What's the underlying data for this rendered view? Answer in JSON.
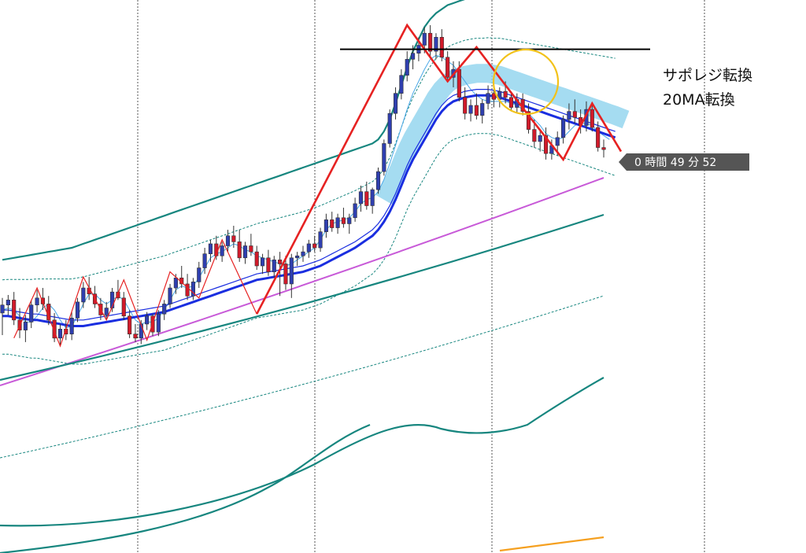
{
  "annotations": {
    "support_resistance_flip": "サポレジ転換",
    "ma20_flip": "20MA転換",
    "countdown": "0 時間 49 分 52"
  },
  "colors": {
    "background": "#ffffff",
    "grid": "#555555",
    "bull_candle": "#2f3fb0",
    "bear_candle": "#d11a2a",
    "zigzag": "#e62222",
    "ma_fast_thin": "#4aa8e8",
    "ma_20": "#1a2ee0",
    "bollinger": "#17867f",
    "ma_long": "#c85ad8",
    "ma_very_long": "#f5a020",
    "highlight_band": "#8fd3ee",
    "circle": "#f2c21a",
    "horizontal_line": "#000000",
    "timer_box": "#555555"
  },
  "chart_data": {
    "type": "candlestick",
    "title": "",
    "xlabel": "",
    "ylabel": "",
    "grid": true,
    "candles": [
      {
        "o": 347,
        "h": 362,
        "l": 325,
        "c": 355
      },
      {
        "o": 355,
        "h": 365,
        "l": 345,
        "c": 360
      },
      {
        "o": 360,
        "h": 368,
        "l": 335,
        "c": 340
      },
      {
        "o": 340,
        "h": 352,
        "l": 322,
        "c": 330
      },
      {
        "o": 330,
        "h": 345,
        "l": 318,
        "c": 338
      },
      {
        "o": 338,
        "h": 360,
        "l": 332,
        "c": 355
      },
      {
        "o": 355,
        "h": 370,
        "l": 348,
        "c": 362
      },
      {
        "o": 362,
        "h": 372,
        "l": 350,
        "c": 356
      },
      {
        "o": 356,
        "h": 364,
        "l": 335,
        "c": 340
      },
      {
        "o": 340,
        "h": 347,
        "l": 318,
        "c": 322
      },
      {
        "o": 322,
        "h": 336,
        "l": 314,
        "c": 331
      },
      {
        "o": 331,
        "h": 340,
        "l": 320,
        "c": 326
      },
      {
        "o": 326,
        "h": 348,
        "l": 320,
        "c": 342
      },
      {
        "o": 342,
        "h": 362,
        "l": 338,
        "c": 358
      },
      {
        "o": 358,
        "h": 378,
        "l": 352,
        "c": 372
      },
      {
        "o": 372,
        "h": 383,
        "l": 360,
        "c": 366
      },
      {
        "o": 366,
        "h": 374,
        "l": 352,
        "c": 356
      },
      {
        "o": 356,
        "h": 362,
        "l": 340,
        "c": 345
      },
      {
        "o": 345,
        "h": 358,
        "l": 340,
        "c": 352
      },
      {
        "o": 352,
        "h": 372,
        "l": 348,
        "c": 368
      },
      {
        "o": 368,
        "h": 380,
        "l": 360,
        "c": 362
      },
      {
        "o": 362,
        "h": 368,
        "l": 340,
        "c": 344
      },
      {
        "o": 344,
        "h": 350,
        "l": 322,
        "c": 326
      },
      {
        "o": 326,
        "h": 336,
        "l": 318,
        "c": 322
      },
      {
        "o": 322,
        "h": 340,
        "l": 316,
        "c": 336
      },
      {
        "o": 336,
        "h": 348,
        "l": 330,
        "c": 344
      },
      {
        "o": 344,
        "h": 346,
        "l": 324,
        "c": 328
      },
      {
        "o": 328,
        "h": 350,
        "l": 324,
        "c": 346
      },
      {
        "o": 346,
        "h": 360,
        "l": 340,
        "c": 356
      },
      {
        "o": 356,
        "h": 376,
        "l": 352,
        "c": 372
      },
      {
        "o": 372,
        "h": 386,
        "l": 366,
        "c": 382
      },
      {
        "o": 382,
        "h": 394,
        "l": 372,
        "c": 376
      },
      {
        "o": 376,
        "h": 386,
        "l": 360,
        "c": 364
      },
      {
        "o": 364,
        "h": 382,
        "l": 360,
        "c": 378
      },
      {
        "o": 378,
        "h": 398,
        "l": 372,
        "c": 392
      },
      {
        "o": 392,
        "h": 412,
        "l": 386,
        "c": 406
      },
      {
        "o": 406,
        "h": 420,
        "l": 398,
        "c": 416
      },
      {
        "o": 416,
        "h": 424,
        "l": 400,
        "c": 404
      },
      {
        "o": 404,
        "h": 418,
        "l": 398,
        "c": 414
      },
      {
        "o": 414,
        "h": 430,
        "l": 408,
        "c": 424
      },
      {
        "o": 424,
        "h": 434,
        "l": 412,
        "c": 418
      },
      {
        "o": 418,
        "h": 430,
        "l": 398,
        "c": 402
      },
      {
        "o": 402,
        "h": 418,
        "l": 396,
        "c": 414
      },
      {
        "o": 414,
        "h": 426,
        "l": 404,
        "c": 408
      },
      {
        "o": 408,
        "h": 414,
        "l": 390,
        "c": 394
      },
      {
        "o": 394,
        "h": 406,
        "l": 386,
        "c": 402
      },
      {
        "o": 402,
        "h": 410,
        "l": 384,
        "c": 388
      },
      {
        "o": 388,
        "h": 404,
        "l": 382,
        "c": 400
      },
      {
        "o": 400,
        "h": 408,
        "l": 364,
        "c": 396
      },
      {
        "o": 396,
        "h": 404,
        "l": 370,
        "c": 376
      },
      {
        "o": 376,
        "h": 406,
        "l": 362,
        "c": 402
      },
      {
        "o": 402,
        "h": 408,
        "l": 394,
        "c": 404
      },
      {
        "o": 404,
        "h": 414,
        "l": 398,
        "c": 408
      },
      {
        "o": 408,
        "h": 420,
        "l": 402,
        "c": 416
      },
      {
        "o": 416,
        "h": 424,
        "l": 408,
        "c": 412
      },
      {
        "o": 412,
        "h": 432,
        "l": 408,
        "c": 428
      },
      {
        "o": 428,
        "h": 446,
        "l": 422,
        "c": 440
      },
      {
        "o": 440,
        "h": 448,
        "l": 428,
        "c": 432
      },
      {
        "o": 432,
        "h": 446,
        "l": 426,
        "c": 442
      },
      {
        "o": 442,
        "h": 452,
        "l": 432,
        "c": 436
      },
      {
        "o": 436,
        "h": 446,
        "l": 426,
        "c": 442
      },
      {
        "o": 442,
        "h": 462,
        "l": 438,
        "c": 456
      },
      {
        "o": 456,
        "h": 474,
        "l": 448,
        "c": 468
      },
      {
        "o": 468,
        "h": 478,
        "l": 450,
        "c": 454
      },
      {
        "o": 454,
        "h": 472,
        "l": 446,
        "c": 470
      },
      {
        "o": 470,
        "h": 492,
        "l": 466,
        "c": 488
      },
      {
        "o": 488,
        "h": 520,
        "l": 484,
        "c": 516
      },
      {
        "o": 516,
        "h": 550,
        "l": 512,
        "c": 546
      },
      {
        "o": 546,
        "h": 572,
        "l": 540,
        "c": 566
      },
      {
        "o": 566,
        "h": 590,
        "l": 560,
        "c": 584
      },
      {
        "o": 584,
        "h": 608,
        "l": 578,
        "c": 600
      },
      {
        "o": 600,
        "h": 614,
        "l": 590,
        "c": 606
      },
      {
        "o": 606,
        "h": 622,
        "l": 598,
        "c": 614
      },
      {
        "o": 614,
        "h": 632,
        "l": 606,
        "c": 626
      },
      {
        "o": 626,
        "h": 634,
        "l": 602,
        "c": 608
      },
      {
        "o": 608,
        "h": 626,
        "l": 600,
        "c": 622
      },
      {
        "o": 622,
        "h": 630,
        "l": 598,
        "c": 602
      },
      {
        "o": 602,
        "h": 608,
        "l": 578,
        "c": 582
      },
      {
        "o": 582,
        "h": 598,
        "l": 572,
        "c": 590
      },
      {
        "o": 590,
        "h": 598,
        "l": 558,
        "c": 562
      },
      {
        "o": 562,
        "h": 572,
        "l": 540,
        "c": 546
      },
      {
        "o": 546,
        "h": 560,
        "l": 538,
        "c": 554
      },
      {
        "o": 554,
        "h": 566,
        "l": 540,
        "c": 544
      },
      {
        "o": 544,
        "h": 560,
        "l": 536,
        "c": 556
      },
      {
        "o": 556,
        "h": 574,
        "l": 550,
        "c": 566
      },
      {
        "o": 566,
        "h": 576,
        "l": 552,
        "c": 560
      },
      {
        "o": 560,
        "h": 572,
        "l": 552,
        "c": 568
      },
      {
        "o": 568,
        "h": 578,
        "l": 556,
        "c": 562
      },
      {
        "o": 562,
        "h": 568,
        "l": 548,
        "c": 552
      },
      {
        "o": 552,
        "h": 566,
        "l": 546,
        "c": 560
      },
      {
        "o": 560,
        "h": 566,
        "l": 544,
        "c": 548
      },
      {
        "o": 548,
        "h": 556,
        "l": 526,
        "c": 530
      },
      {
        "o": 530,
        "h": 540,
        "l": 512,
        "c": 518
      },
      {
        "o": 518,
        "h": 530,
        "l": 508,
        "c": 524
      },
      {
        "o": 524,
        "h": 532,
        "l": 500,
        "c": 506
      },
      {
        "o": 506,
        "h": 520,
        "l": 500,
        "c": 514
      },
      {
        "o": 514,
        "h": 528,
        "l": 504,
        "c": 522
      },
      {
        "o": 522,
        "h": 544,
        "l": 516,
        "c": 540
      },
      {
        "o": 540,
        "h": 556,
        "l": 530,
        "c": 548
      },
      {
        "o": 548,
        "h": 560,
        "l": 536,
        "c": 542
      },
      {
        "o": 542,
        "h": 550,
        "l": 526,
        "c": 534
      },
      {
        "o": 534,
        "h": 558,
        "l": 528,
        "c": 550
      },
      {
        "o": 550,
        "h": 556,
        "l": 528,
        "c": 532
      },
      {
        "o": 532,
        "h": 538,
        "l": 508,
        "c": 512
      },
      {
        "o": 512,
        "h": 520,
        "l": 502,
        "c": 510
      }
    ],
    "overlays": {
      "sr_line_level": 610,
      "zigzag": [
        [
          2,
          322
        ],
        [
          6,
          372
        ],
        [
          10,
          314
        ],
        [
          14,
          383
        ],
        [
          18,
          340
        ],
        [
          21,
          380
        ],
        [
          25,
          320
        ],
        [
          29,
          388
        ],
        [
          34,
          362
        ],
        [
          38,
          420
        ],
        [
          44,
          346
        ],
        [
          70,
          634
        ],
        [
          77,
          578
        ],
        [
          82,
          612
        ],
        [
          91,
          544
        ],
        [
          97,
          500
        ],
        [
          102,
          556
        ],
        [
          107,
          508
        ]
      ],
      "ma20": [
        344,
        344,
        343,
        342,
        341,
        340,
        340,
        339,
        338,
        337,
        336,
        335,
        334,
        334,
        334,
        335,
        336,
        337,
        338,
        339,
        340,
        341,
        342,
        343,
        344,
        345,
        346,
        347,
        348,
        350,
        352,
        354,
        356,
        358,
        360,
        362,
        364,
        366,
        368,
        370,
        372,
        374,
        376,
        378,
        380,
        381,
        382,
        383,
        384,
        385,
        386,
        387,
        388,
        390,
        392,
        394,
        397,
        400,
        403,
        406,
        409,
        412,
        416,
        420,
        424,
        430,
        438,
        448,
        460,
        474,
        488,
        500,
        510,
        520,
        530,
        540,
        548,
        554,
        558,
        560,
        562,
        563,
        564,
        564,
        564,
        563,
        562,
        560,
        558,
        556,
        554,
        552,
        550,
        548,
        546,
        544,
        542,
        540,
        538,
        536,
        534,
        532,
        530,
        528,
        526,
        524,
        522
      ],
      "ma_fast": [
        350,
        352,
        350,
        344,
        338,
        338,
        344,
        352,
        356,
        350,
        340,
        332,
        334,
        344,
        356,
        366,
        366,
        360,
        356,
        360,
        364,
        360,
        350,
        340,
        336,
        338,
        338,
        342,
        350,
        360,
        370,
        374,
        372,
        374,
        382,
        392,
        402,
        406,
        408,
        412,
        416,
        414,
        410,
        408,
        404,
        402,
        400,
        398,
        396,
        394,
        396,
        400,
        404,
        408,
        412,
        420,
        430,
        436,
        438,
        440,
        442,
        448,
        456,
        460,
        462,
        468,
        480,
        496,
        514,
        532,
        550,
        566,
        578,
        590,
        600,
        604,
        602,
        598,
        594,
        586,
        578,
        570,
        564,
        560,
        558,
        558,
        558,
        558,
        556,
        554,
        550,
        546,
        540,
        534,
        526,
        522,
        520,
        522,
        528,
        534,
        536,
        536,
        534,
        528,
        524,
        520
      ],
      "bb_upper_1": [
        400,
        401,
        402,
        403,
        404,
        405,
        406,
        407,
        408,
        409,
        410,
        411,
        412,
        414,
        416,
        418,
        420,
        422,
        424,
        426,
        428,
        430,
        432,
        434,
        436,
        438,
        440,
        442,
        444,
        446,
        448,
        450,
        452,
        454,
        456,
        458,
        460,
        462,
        464,
        466,
        468,
        470,
        472,
        474,
        476,
        478,
        480,
        482,
        484,
        486,
        488,
        490,
        492,
        494,
        496,
        498,
        500,
        502,
        504,
        506,
        508,
        510,
        512,
        514,
        516,
        520,
        528,
        540,
        556,
        574,
        592,
        608,
        620,
        632,
        640,
        646,
        650,
        654,
        656,
        658,
        660,
        661,
        662,
        662,
        663,
        663,
        664,
        664,
        664,
        664,
        664,
        664,
        664,
        664,
        664,
        664,
        664,
        664,
        664,
        664,
        664,
        664,
        664,
        664,
        664,
        664,
        664
      ]
    }
  }
}
